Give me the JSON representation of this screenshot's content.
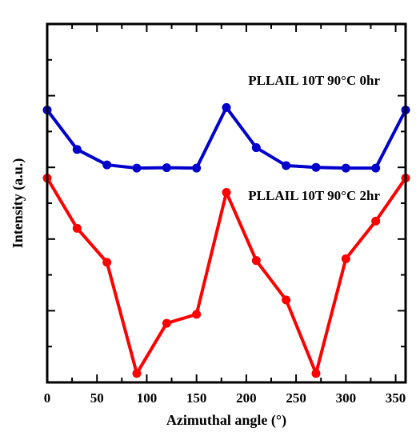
{
  "chart_data": {
    "type": "line",
    "xlabel": "Azimuthal angle (°)",
    "ylabel": "Intensity (a.u.)",
    "xlim": [
      0,
      360
    ],
    "ylim": [
      0,
      10
    ],
    "x_ticks": [
      0,
      50,
      100,
      150,
      200,
      250,
      300,
      350
    ],
    "x_tick_labels": [
      "0",
      "50",
      "100",
      "150",
      "200",
      "250",
      "300",
      "350"
    ],
    "grid": false,
    "y_tick_labels_shown": false,
    "x": [
      0,
      30,
      60,
      90,
      120,
      150,
      180,
      210,
      240,
      270,
      300,
      330,
      360
    ],
    "series": [
      {
        "name": "PLLAIL 10T 90°C 0hr",
        "color": "#0000cc",
        "values": [
          7.6,
          6.5,
          6.07,
          5.98,
          5.99,
          5.98,
          7.67,
          6.55,
          6.05,
          6.0,
          5.98,
          5.98,
          7.6
        ]
      },
      {
        "name": "PLLAIL 10T 90°C 2hr",
        "color": "#ff0000",
        "values": [
          5.7,
          4.3,
          3.35,
          0.25,
          1.65,
          1.9,
          5.3,
          3.4,
          2.3,
          0.25,
          3.45,
          4.5,
          5.7
        ]
      }
    ],
    "annotations": [
      {
        "text": "PLLAIL 10T 90°C 0hr",
        "series": 0
      },
      {
        "text": "PLLAIL 10T 90°C 2hr",
        "series": 1
      }
    ]
  }
}
